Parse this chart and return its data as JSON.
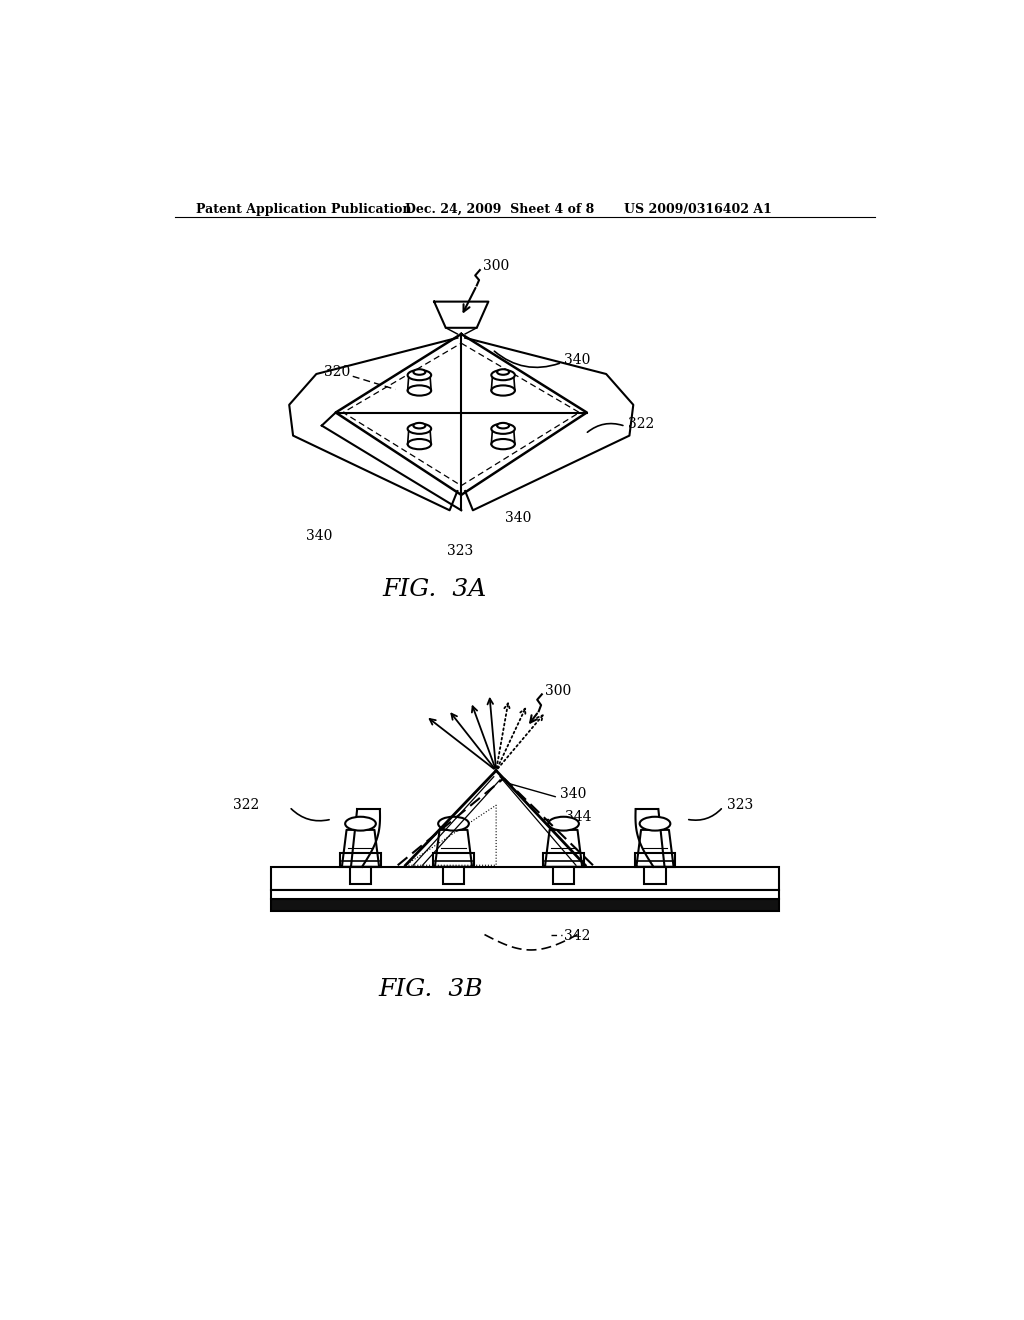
{
  "bg_color": "#ffffff",
  "line_color": "#000000",
  "header_left": "Patent Application Publication",
  "header_mid": "Dec. 24, 2009  Sheet 4 of 8",
  "header_right": "US 2009/0316402 A1",
  "fig3a_label": "FIG.  3A",
  "fig3b_label": "FIG.  3B"
}
